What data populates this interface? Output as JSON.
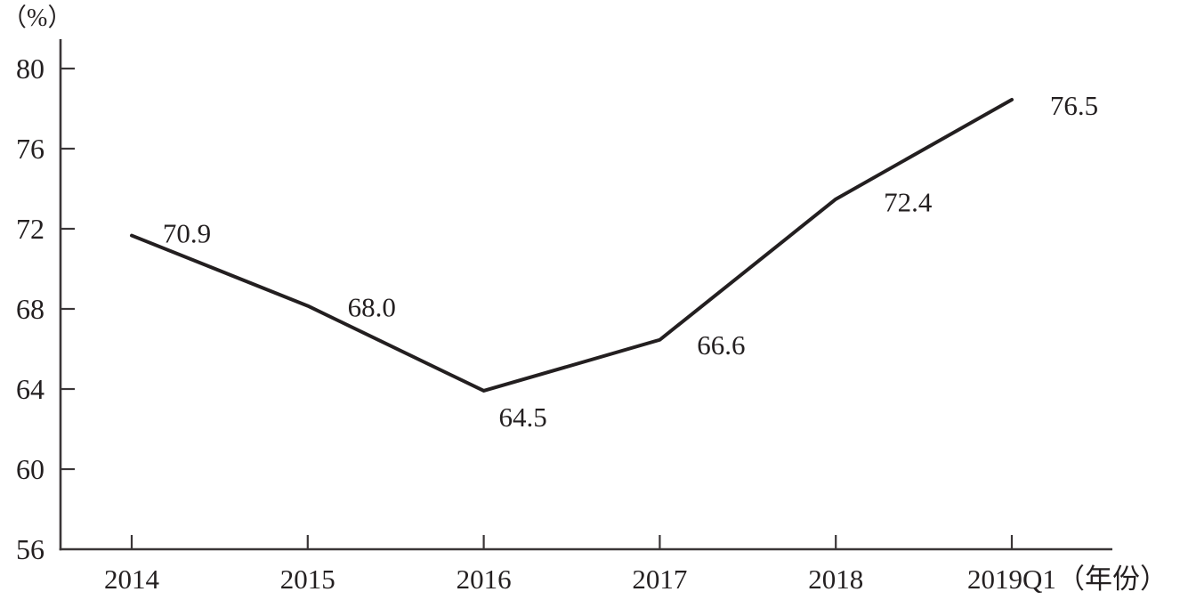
{
  "chart_data": {
    "type": "line",
    "title": "",
    "y_axis": {
      "unit_label": "（%）",
      "ticks": [
        80,
        76,
        72,
        68,
        64,
        60,
        56
      ],
      "tick_labels": [
        "80",
        "76",
        "72",
        "68",
        "64",
        "60",
        "56"
      ],
      "range": [
        56,
        80
      ],
      "step": 4
    },
    "x_axis": {
      "unit_label": "（年份）",
      "tick_labels": [
        "2014",
        "2015",
        "2016",
        "2017",
        "2018",
        "2019Q1"
      ]
    },
    "categories": [
      "2014",
      "2015",
      "2016",
      "2017",
      "2018",
      "2019Q1"
    ],
    "series": [
      {
        "name": "",
        "values": [
          70.9,
          68.0,
          64.5,
          66.6,
          72.4,
          76.5
        ],
        "point_labels": [
          "70.9",
          "68.0",
          "64.5",
          "66.6",
          "72.4",
          "76.5"
        ]
      }
    ],
    "grid": false,
    "legend_position": "none",
    "colors": {
      "line": "#231f20",
      "axis": "#3a3637",
      "text": "#231f20",
      "background": "#ffffff"
    }
  }
}
